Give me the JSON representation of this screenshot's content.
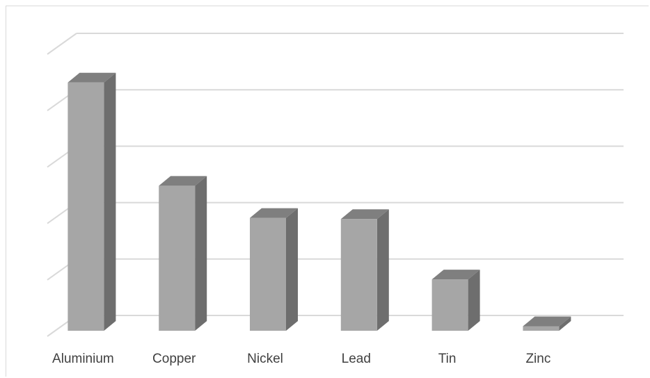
{
  "chart_data": {
    "type": "bar",
    "style": "3d-column",
    "categories": [
      "Aluminium",
      "Copper",
      "Nickel",
      "Lead",
      "Tin",
      "Zinc"
    ],
    "values": [
      4.4,
      2.57,
      2.0,
      1.98,
      0.91,
      0.08
    ],
    "title": "",
    "xlabel": "",
    "ylabel": "",
    "ylim": [
      0,
      5
    ],
    "grid": true,
    "legend": "none",
    "colors": {
      "front": "#a6a6a6",
      "side": "#6e6e6e",
      "top": "#7f7f7f",
      "grid": "#d9d9d9",
      "text": "#404040"
    }
  }
}
